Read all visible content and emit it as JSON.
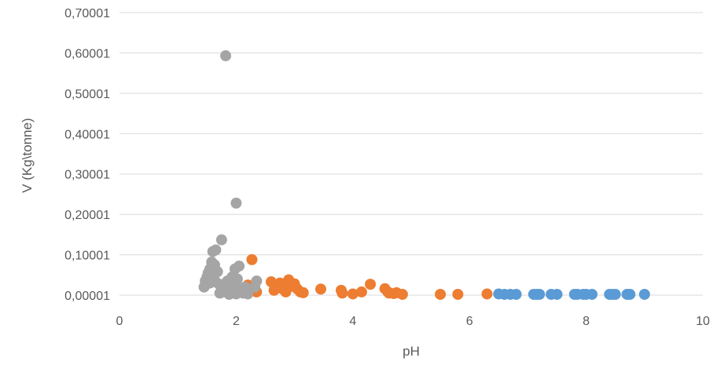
{
  "chart_data": {
    "type": "scatter",
    "title": "",
    "xlabel": "pH",
    "ylabel": "V (Kg\\tonne)",
    "xlim": [
      0,
      10
    ],
    "ylim": [
      1e-05,
      0.70001
    ],
    "x_ticks": [
      "0",
      "2",
      "4",
      "6",
      "8",
      "10"
    ],
    "y_ticks": [
      "0,00001",
      "0,10001",
      "0,20001",
      "0,30001",
      "0,40001",
      "0,50001",
      "0,60001",
      "0,70001"
    ],
    "grid": "horizontal",
    "legend": "none",
    "colors": {
      "series_blue": "#5B9BD5",
      "series_orange": "#ED7D31",
      "series_gray": "#A5A5A5",
      "gridline": "#D9D9D9",
      "text": "#595959"
    },
    "series": [
      {
        "color": "series_blue",
        "points": [
          [
            6.5,
            0.003
          ],
          [
            6.6,
            0.002
          ],
          [
            6.7,
            0.002
          ],
          [
            6.8,
            0.002
          ],
          [
            7.1,
            0.002
          ],
          [
            7.15,
            0.002
          ],
          [
            7.2,
            0.002
          ],
          [
            7.4,
            0.002
          ],
          [
            7.5,
            0.002
          ],
          [
            7.8,
            0.002
          ],
          [
            7.85,
            0.002
          ],
          [
            7.95,
            0.002
          ],
          [
            8.0,
            0.002
          ],
          [
            8.1,
            0.002
          ],
          [
            8.4,
            0.002
          ],
          [
            8.45,
            0.002
          ],
          [
            8.5,
            0.002
          ],
          [
            8.7,
            0.002
          ],
          [
            8.75,
            0.002
          ],
          [
            9.0,
            0.002
          ]
        ]
      },
      {
        "color": "series_orange",
        "points": [
          [
            2.27,
            0.088
          ],
          [
            2.2,
            0.025
          ],
          [
            2.35,
            0.008
          ],
          [
            2.6,
            0.033
          ],
          [
            2.65,
            0.012
          ],
          [
            2.7,
            0.02
          ],
          [
            2.75,
            0.03
          ],
          [
            2.8,
            0.015
          ],
          [
            2.85,
            0.008
          ],
          [
            2.9,
            0.038
          ],
          [
            2.95,
            0.022
          ],
          [
            3.0,
            0.028
          ],
          [
            3.05,
            0.015
          ],
          [
            3.1,
            0.008
          ],
          [
            3.15,
            0.006
          ],
          [
            3.45,
            0.015
          ],
          [
            3.8,
            0.012
          ],
          [
            3.82,
            0.005
          ],
          [
            4.0,
            0.003
          ],
          [
            4.15,
            0.008
          ],
          [
            4.3,
            0.027
          ],
          [
            4.55,
            0.016
          ],
          [
            4.6,
            0.008
          ],
          [
            4.62,
            0.005
          ],
          [
            4.7,
            0.004
          ],
          [
            4.75,
            0.006
          ],
          [
            4.85,
            0.002
          ],
          [
            5.5,
            0.002
          ],
          [
            5.8,
            0.002
          ],
          [
            6.3,
            0.003
          ]
        ]
      },
      {
        "color": "series_gray",
        "points": [
          [
            1.82,
            0.593
          ],
          [
            2.0,
            0.228
          ],
          [
            1.75,
            0.137
          ],
          [
            1.65,
            0.112
          ],
          [
            1.6,
            0.108
          ],
          [
            1.58,
            0.082
          ],
          [
            1.63,
            0.075
          ],
          [
            1.55,
            0.065
          ],
          [
            1.52,
            0.055
          ],
          [
            1.6,
            0.05
          ],
          [
            1.68,
            0.058
          ],
          [
            1.5,
            0.045
          ],
          [
            1.47,
            0.035
          ],
          [
            1.45,
            0.02
          ],
          [
            1.55,
            0.03
          ],
          [
            1.62,
            0.04
          ],
          [
            1.7,
            0.028
          ],
          [
            1.72,
            0.005
          ],
          [
            1.78,
            0.008
          ],
          [
            1.8,
            0.015
          ],
          [
            1.85,
            0.035
          ],
          [
            1.9,
            0.025
          ],
          [
            1.93,
            0.045
          ],
          [
            1.95,
            0.02
          ],
          [
            1.97,
            0.008
          ],
          [
            1.98,
            0.065
          ],
          [
            2.02,
            0.04
          ],
          [
            2.05,
            0.072
          ],
          [
            2.07,
            0.015
          ],
          [
            2.1,
            0.01
          ],
          [
            2.12,
            0.005
          ],
          [
            2.15,
            0.02
          ],
          [
            2.18,
            0.005
          ],
          [
            2.2,
            0.003
          ],
          [
            2.35,
            0.035
          ],
          [
            2.32,
            0.02
          ],
          [
            1.88,
            0.002
          ],
          [
            2.0,
            0.003
          ],
          [
            1.92,
            0.01
          ],
          [
            1.75,
            0.02
          ]
        ]
      }
    ]
  }
}
